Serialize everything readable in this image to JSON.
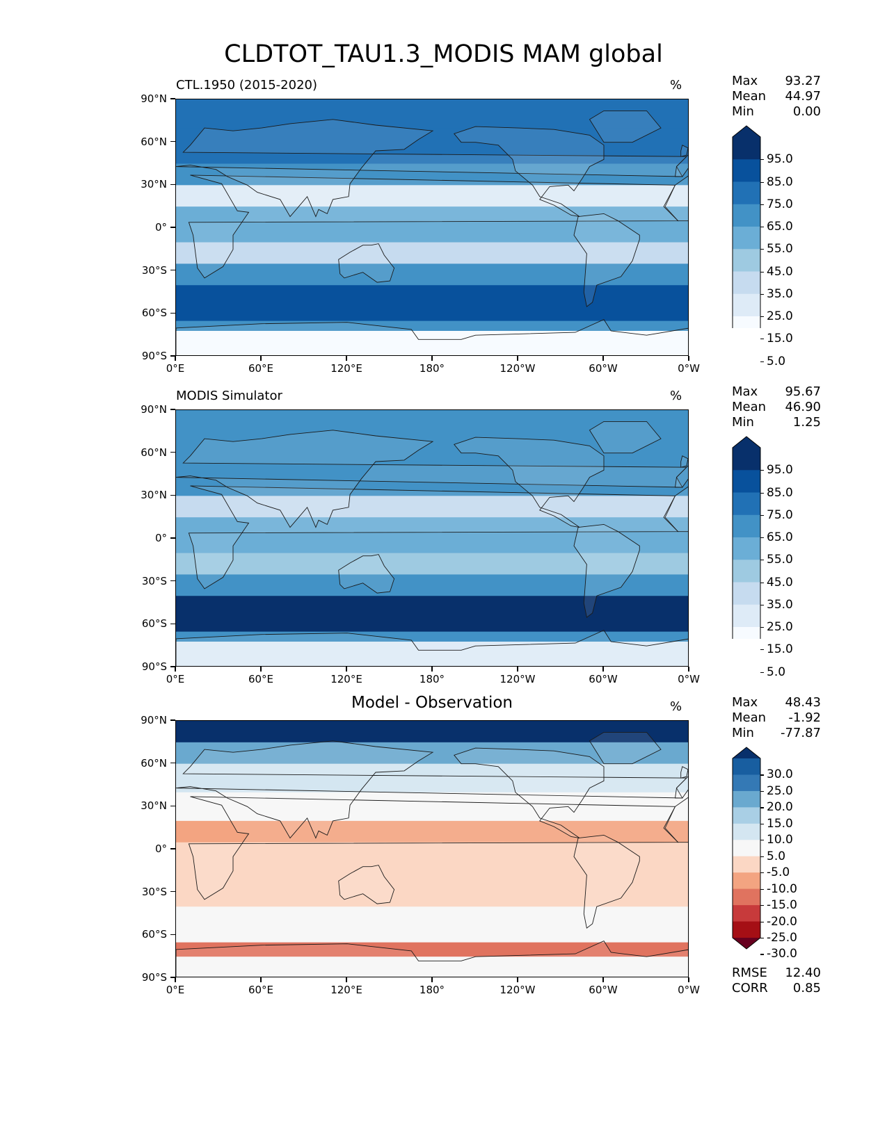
{
  "title": "CLDTOT_TAU1.3_MODIS MAM global",
  "units": "%",
  "colors": {
    "blues": [
      "#f7fbff",
      "#deebf7",
      "#c6dbef",
      "#9ecae1",
      "#6baed6",
      "#4292c6",
      "#2171b5",
      "#08519c",
      "#08306b"
    ],
    "rdbu": [
      "#67001f",
      "#a50f15",
      "#c73a3b",
      "#e0735f",
      "#f3a481",
      "#fbd7c4",
      "#f7f7f7",
      "#d4e6f1",
      "#a9cfe5",
      "#6aa9cf",
      "#3479b5",
      "#185ea0",
      "#08306b"
    ]
  },
  "chart_data": [
    {
      "type": "heatmap",
      "title": "CTL.1950 (2015-2020)",
      "units": "%",
      "xticks": [
        "0°E",
        "60°E",
        "120°E",
        "180°",
        "120°W",
        "60°W",
        "0°W"
      ],
      "yticks": [
        "90°N",
        "60°N",
        "30°N",
        "0°",
        "30°S",
        "60°S",
        "90°S"
      ],
      "xlim": [
        0,
        360
      ],
      "ylim": [
        -90,
        90
      ],
      "stats": [
        {
          "label": "Max",
          "value": "93.27"
        },
        {
          "label": "Mean",
          "value": "44.97"
        },
        {
          "label": "Min",
          "value": "0.00"
        }
      ],
      "colorbar_levels": [
        "95.0",
        "85.0",
        "75.0",
        "65.0",
        "55.0",
        "45.0",
        "35.0",
        "25.0",
        "15.0",
        "5.0"
      ],
      "bands": [
        {
          "lat": [
            90,
            70
          ],
          "value": 70
        },
        {
          "lat": [
            70,
            45
          ],
          "value": 75
        },
        {
          "lat": [
            45,
            30
          ],
          "value": 55
        },
        {
          "lat": [
            30,
            15
          ],
          "value": 20
        },
        {
          "lat": [
            15,
            -10
          ],
          "value": 45
        },
        {
          "lat": [
            -10,
            -25
          ],
          "value": 30
        },
        {
          "lat": [
            -25,
            -40
          ],
          "value": 60
        },
        {
          "lat": [
            -40,
            -65
          ],
          "value": 85
        },
        {
          "lat": [
            -65,
            -72
          ],
          "value": 60
        },
        {
          "lat": [
            -72,
            -90
          ],
          "value": 8
        }
      ]
    },
    {
      "type": "heatmap",
      "title": "MODIS Simulator",
      "units": "%",
      "xticks": [
        "0°E",
        "60°E",
        "120°E",
        "180°",
        "120°W",
        "60°W",
        "0°W"
      ],
      "yticks": [
        "90°N",
        "60°N",
        "30°N",
        "0°",
        "30°S",
        "60°S",
        "90°S"
      ],
      "xlim": [
        0,
        360
      ],
      "ylim": [
        -90,
        90
      ],
      "stats": [
        {
          "label": "Max",
          "value": "95.67"
        },
        {
          "label": "Mean",
          "value": "46.90"
        },
        {
          "label": "Min",
          "value": "1.25"
        }
      ],
      "colorbar_levels": [
        "95.0",
        "85.0",
        "75.0",
        "65.0",
        "55.0",
        "45.0",
        "35.0",
        "25.0",
        "15.0",
        "5.0"
      ],
      "bands": [
        {
          "lat": [
            90,
            70
          ],
          "value": 55
        },
        {
          "lat": [
            70,
            45
          ],
          "value": 65
        },
        {
          "lat": [
            45,
            30
          ],
          "value": 60
        },
        {
          "lat": [
            30,
            15
          ],
          "value": 30
        },
        {
          "lat": [
            15,
            -10
          ],
          "value": 50
        },
        {
          "lat": [
            -10,
            -25
          ],
          "value": 40
        },
        {
          "lat": [
            -25,
            -40
          ],
          "value": 65
        },
        {
          "lat": [
            -40,
            -65
          ],
          "value": 88
        },
        {
          "lat": [
            -65,
            -72
          ],
          "value": 55
        },
        {
          "lat": [
            -72,
            -90
          ],
          "value": 20
        }
      ]
    },
    {
      "type": "heatmap",
      "title": "Model - Observation",
      "units": "%",
      "xticks": [
        "0°E",
        "60°E",
        "120°E",
        "180°",
        "120°W",
        "60°W",
        "0°W"
      ],
      "yticks": [
        "90°N",
        "60°N",
        "30°N",
        "0°",
        "30°S",
        "60°S",
        "90°S"
      ],
      "xlim": [
        0,
        360
      ],
      "ylim": [
        -90,
        90
      ],
      "stats": [
        {
          "label": "Max",
          "value": "48.43"
        },
        {
          "label": "Mean",
          "value": "-1.92"
        },
        {
          "label": "Min",
          "value": "-77.87"
        }
      ],
      "colorbar_levels": [
        "30.0",
        "25.0",
        "20.0",
        "15.0",
        "10.0",
        "5.0",
        "-5.0",
        "-10.0",
        "-15.0",
        "-20.0",
        "-25.0",
        "-30.0"
      ],
      "metrics": [
        {
          "label": "RMSE",
          "value": "12.40"
        },
        {
          "label": "CORR",
          "value": "0.85"
        }
      ],
      "bands": [
        {
          "lat": [
            90,
            75
          ],
          "value": 32
        },
        {
          "lat": [
            75,
            60
          ],
          "value": 18
        },
        {
          "lat": [
            60,
            40
          ],
          "value": 8
        },
        {
          "lat": [
            40,
            20
          ],
          "value": 0
        },
        {
          "lat": [
            20,
            5
          ],
          "value": -12
        },
        {
          "lat": [
            5,
            -10
          ],
          "value": -8
        },
        {
          "lat": [
            -10,
            -40
          ],
          "value": -6
        },
        {
          "lat": [
            -40,
            -65
          ],
          "value": 0
        },
        {
          "lat": [
            -65,
            -75
          ],
          "value": -20
        },
        {
          "lat": [
            -75,
            -90
          ],
          "value": 2
        }
      ]
    }
  ]
}
